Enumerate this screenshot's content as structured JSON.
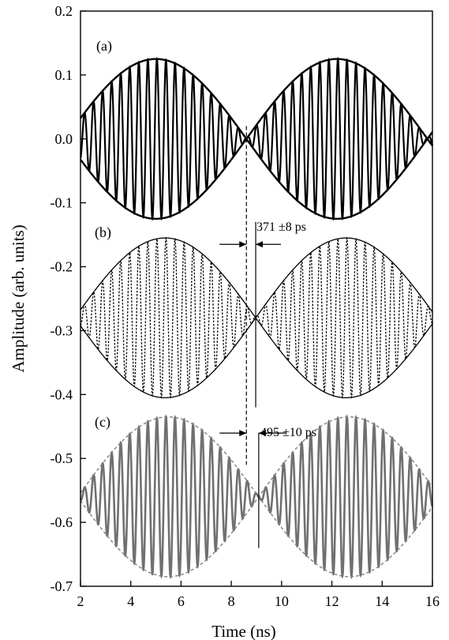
{
  "chart_data": {
    "type": "line",
    "xlabel": "Time (ns)",
    "ylabel": "Amplitude (arb. units)",
    "xlim": [
      2,
      16
    ],
    "ylim": [
      -0.7,
      0.2
    ],
    "xticks": [
      "2",
      "4",
      "6",
      "8",
      "10",
      "12",
      "14",
      "16"
    ],
    "yticks": [
      "0.2",
      "0.1",
      "0.0",
      "-0.1",
      "-0.2",
      "-0.3",
      "-0.4",
      "-0.5",
      "-0.6",
      "-0.7"
    ],
    "grid": false,
    "panels": [
      {
        "label": "(a)",
        "offset": 0.0,
        "envelope_amplitude": 0.125,
        "envelope_period_ns": 7.2,
        "envelope_node_ns": 8.6,
        "carrier_period_ns": 0.36,
        "line_style": "solid-black"
      },
      {
        "label": "(b)",
        "offset": -0.28,
        "envelope_amplitude": 0.125,
        "envelope_period_ns": 7.2,
        "envelope_node_ns": 8.97,
        "carrier_period_ns": 0.36,
        "line_style": "dotted-black"
      },
      {
        "label": "(c)",
        "offset": -0.56,
        "envelope_amplitude": 0.125,
        "envelope_period_ns": 7.2,
        "envelope_node_ns": 9.09,
        "carrier_period_ns": 0.36,
        "line_style": "solid-gray"
      }
    ],
    "reference_lines": [
      {
        "x": 8.6,
        "y_range": [
          0.02,
          -0.51
        ],
        "style": "dashed"
      },
      {
        "x": 8.97,
        "y_range": [
          -0.13,
          -0.42
        ],
        "style": "solid"
      },
      {
        "x": 9.09,
        "y_range": [
          -0.46,
          -0.64
        ],
        "style": "solid"
      }
    ],
    "annotations": [
      {
        "text": "371 ±8 ps",
        "x": 9.05,
        "y": -0.16
      },
      {
        "text": "495 ±10 ps",
        "x": 9.1,
        "y": -0.455
      }
    ]
  }
}
